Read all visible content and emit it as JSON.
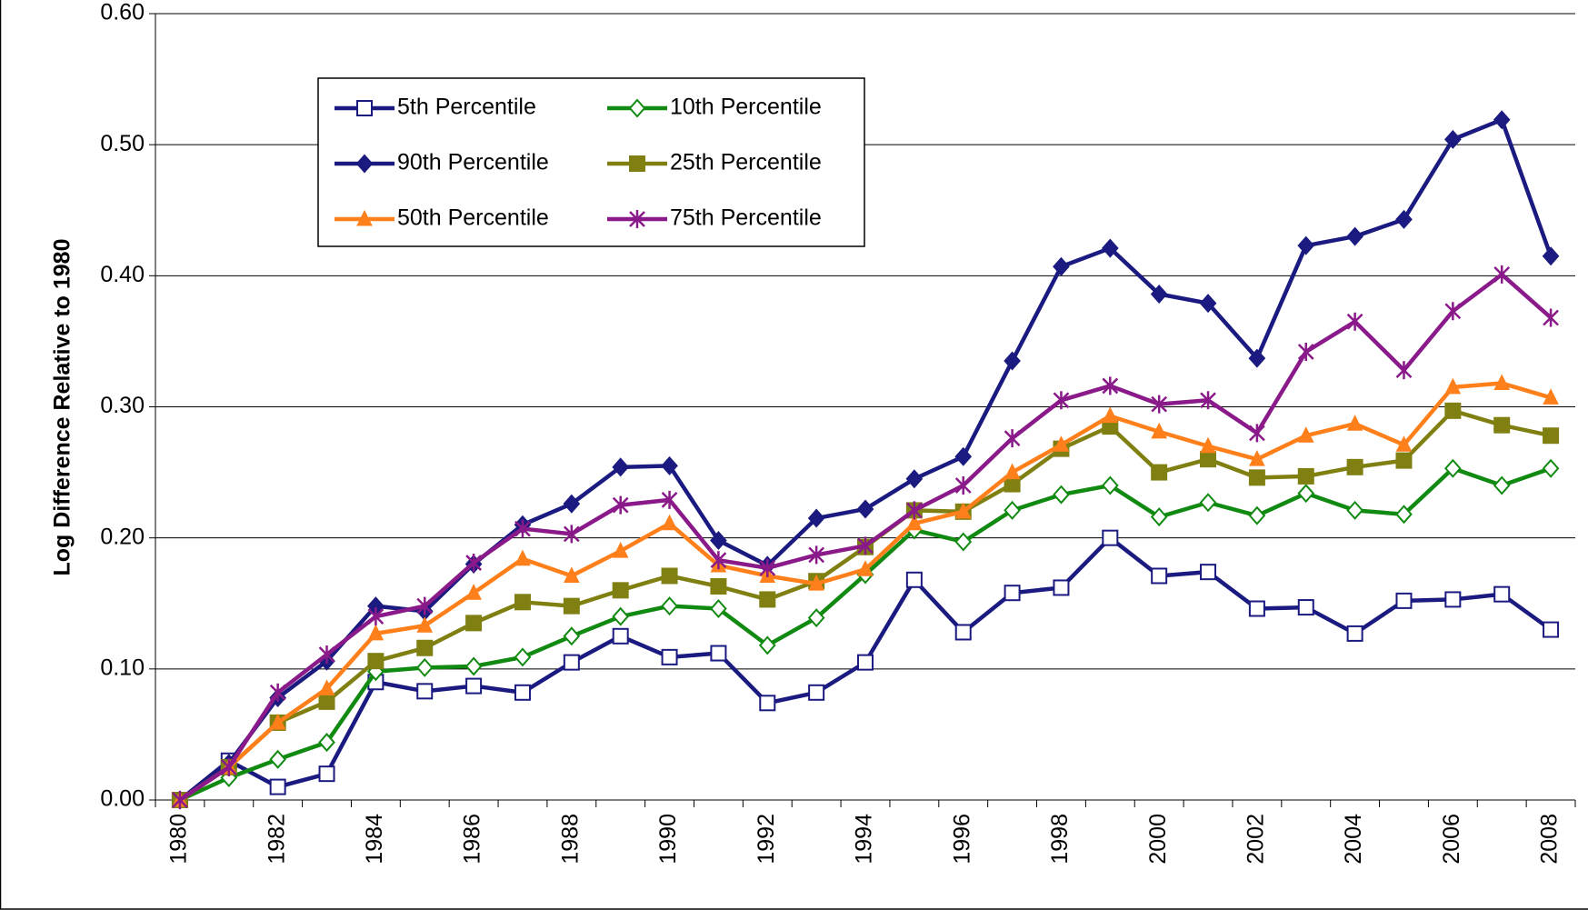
{
  "chart_data": {
    "type": "line",
    "y_label": "Log Difference Relative to 1980",
    "categories": [
      "1980",
      null,
      "1982",
      null,
      "1984",
      null,
      "1986",
      null,
      "1988",
      null,
      "1990",
      null,
      "1992",
      null,
      "1994",
      null,
      "1996",
      null,
      "1998",
      null,
      "2000",
      null,
      "2002",
      null,
      "2004",
      null,
      "2006",
      null,
      "2008"
    ],
    "ylim": [
      0,
      0.6
    ],
    "yticks": [
      {
        "value": 0,
        "label": "0.00"
      },
      {
        "value": 0.1,
        "label": "0.10"
      },
      {
        "value": 0.2,
        "label": "0.20"
      },
      {
        "value": 0.3,
        "label": "0.30"
      },
      {
        "value": 0.4,
        "label": "0.40"
      },
      {
        "value": 0.5,
        "label": "0.50"
      },
      {
        "value": 0.6,
        "label": "0.60"
      }
    ],
    "grid": true,
    "legend": "top-left",
    "series": [
      {
        "name": "5th Percentile",
        "color": "#1a1a80",
        "marker": "square-open",
        "values": [
          0,
          0.03,
          0.01,
          0.02,
          0.09,
          0.083,
          0.087,
          0.082,
          0.105,
          0.125,
          0.109,
          0.112,
          0.074,
          0.082,
          0.105,
          0.168,
          0.128,
          0.158,
          0.162,
          0.2,
          0.171,
          0.174,
          0.146,
          0.147,
          0.127,
          0.152,
          0.153,
          0.157,
          0.13
        ]
      },
      {
        "name": "10th Percentile",
        "color": "#118a11",
        "marker": "diamond-open",
        "values": [
          0,
          0.017,
          0.031,
          0.044,
          0.098,
          0.101,
          0.102,
          0.109,
          0.125,
          0.14,
          0.148,
          0.146,
          0.118,
          0.139,
          0.172,
          0.206,
          0.197,
          0.221,
          0.233,
          0.24,
          0.216,
          0.227,
          0.217,
          0.234,
          0.221,
          0.218,
          0.253,
          0.24,
          0.253
        ]
      },
      {
        "name": "90th Percentile",
        "color": "#1a1a80",
        "marker": "diamond",
        "values": [
          0,
          0.028,
          0.078,
          0.106,
          0.148,
          0.144,
          0.18,
          0.21,
          0.226,
          0.254,
          0.255,
          0.198,
          0.179,
          0.215,
          0.222,
          0.245,
          0.262,
          0.335,
          0.407,
          0.421,
          0.386,
          0.379,
          0.337,
          0.423,
          0.43,
          0.443,
          0.504,
          0.519,
          0.415
        ]
      },
      {
        "name": "25th Percentile",
        "color": "#808012",
        "marker": "square",
        "values": [
          0,
          0.025,
          0.059,
          0.075,
          0.106,
          0.116,
          0.135,
          0.151,
          0.148,
          0.16,
          0.171,
          0.163,
          0.153,
          0.167,
          0.193,
          0.221,
          0.22,
          0.241,
          0.268,
          0.285,
          0.25,
          0.26,
          0.246,
          0.247,
          0.254,
          0.259,
          0.297,
          0.286,
          0.278
        ]
      },
      {
        "name": "50th Percentile",
        "color": "#ff7f1a",
        "marker": "triangle",
        "values": [
          0,
          0.025,
          0.059,
          0.085,
          0.127,
          0.133,
          0.158,
          0.184,
          0.171,
          0.19,
          0.211,
          0.179,
          0.171,
          0.165,
          0.176,
          0.211,
          0.22,
          0.25,
          0.271,
          0.293,
          0.281,
          0.27,
          0.26,
          0.278,
          0.287,
          0.271,
          0.315,
          0.318,
          0.307
        ]
      },
      {
        "name": "75th Percentile",
        "color": "#8a1a8a",
        "marker": "star",
        "values": [
          0,
          0.025,
          0.082,
          0.111,
          0.14,
          0.148,
          0.181,
          0.207,
          0.203,
          0.225,
          0.229,
          0.183,
          0.177,
          0.187,
          0.194,
          0.221,
          0.24,
          0.276,
          0.305,
          0.316,
          0.302,
          0.305,
          0.28,
          0.342,
          0.365,
          0.328,
          0.373,
          0.401,
          0.368
        ]
      }
    ]
  }
}
